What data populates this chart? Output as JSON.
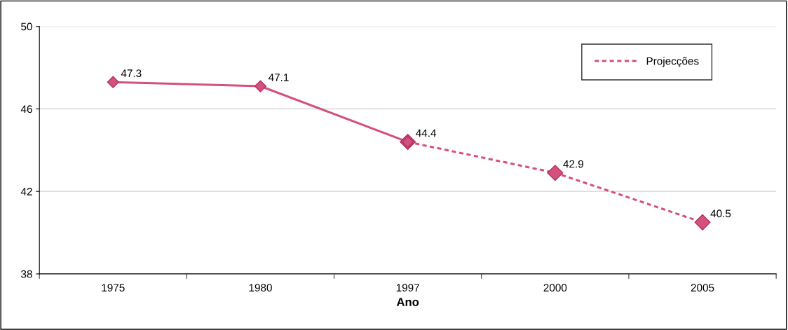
{
  "chart_data": {
    "type": "line",
    "xlabel": "Ano",
    "categories": [
      "1975",
      "1980",
      "1997",
      "2000",
      "2005"
    ],
    "series": [
      {
        "color": "#d4507e",
        "line_style": "solid",
        "values": [
          47.3,
          47.1,
          44.4,
          null,
          null
        ],
        "value_labels": [
          "47.3",
          "47.1",
          "44.4",
          null,
          null
        ]
      },
      {
        "name": "Projecções",
        "color": "#d4507e",
        "line_style": "dashed",
        "values": [
          null,
          null,
          44.4,
          42.9,
          40.5
        ],
        "value_labels": [
          null,
          null,
          null,
          "42.9",
          "40.5"
        ]
      }
    ],
    "ylim": [
      38,
      50
    ],
    "yticks": [
      38,
      42,
      46,
      50
    ],
    "grid": "y",
    "legend": "top right",
    "marker": "diamond"
  }
}
